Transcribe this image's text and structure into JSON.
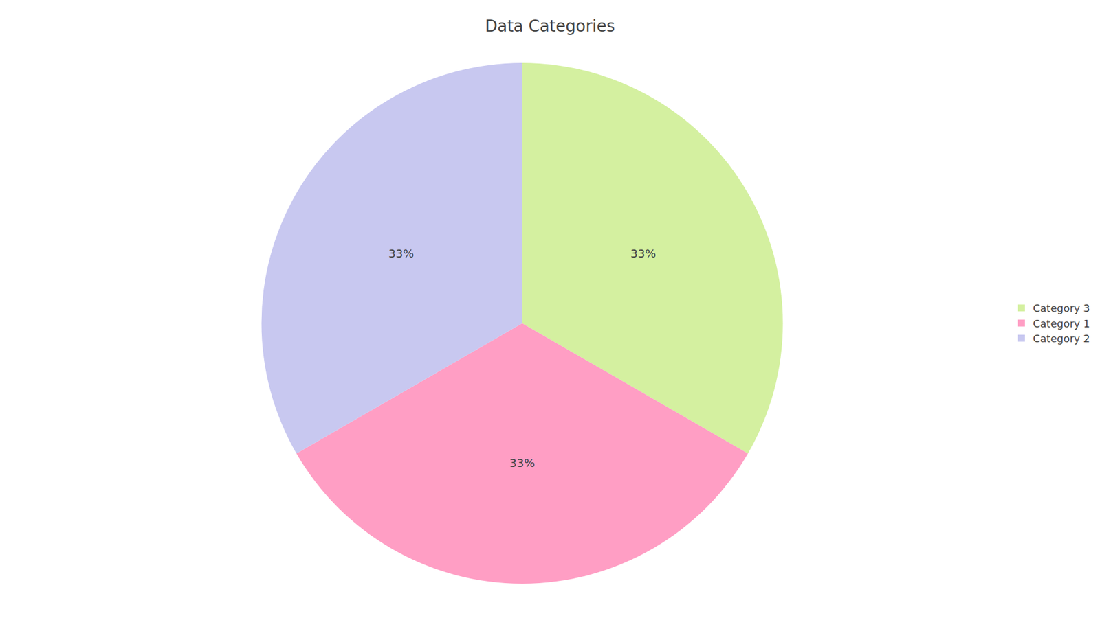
{
  "chart_data": {
    "type": "pie",
    "title": "Data Categories",
    "categories": [
      "Category 3",
      "Category 1",
      "Category 2"
    ],
    "values": [
      33,
      33,
      33
    ],
    "value_labels": [
      "33%",
      "33%",
      "33%"
    ],
    "colors": [
      "#D4F0A0",
      "#FF9EC4",
      "#C8C8F0"
    ],
    "legend": "right",
    "data_labels": true
  }
}
